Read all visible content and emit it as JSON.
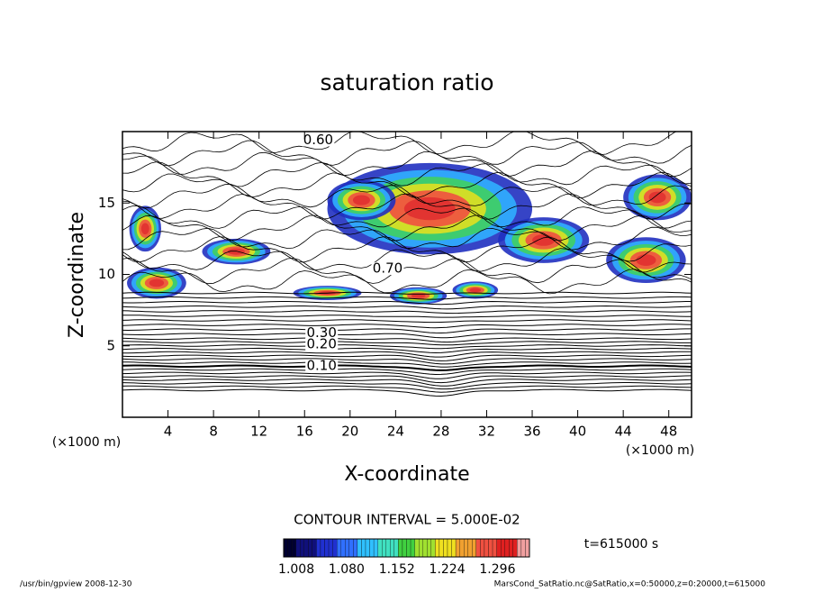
{
  "chart_data": {
    "type": "contour",
    "title": "saturation ratio",
    "x_label": "X-coordinate",
    "y_label": "Z-coordinate",
    "x_unit": "(×1000 m)",
    "y_unit": "(×1000 m)",
    "xlim": [
      0,
      50
    ],
    "ylim": [
      0,
      20
    ],
    "xticks": [
      4,
      8,
      12,
      16,
      20,
      24,
      28,
      32,
      36,
      40,
      44,
      48
    ],
    "yticks": [
      5,
      10,
      15
    ],
    "contour_labels": [
      "0.60",
      "0.70",
      "0.30",
      "0.20",
      "0.10"
    ],
    "contour_label_x": [
      17.2,
      23.3,
      17.5,
      17.5,
      17.5
    ],
    "contour_label_y": [
      19.4,
      10.4,
      5.9,
      5.1,
      3.6
    ],
    "contour_interval": "CONTOUR INTERVAL = 5.000E-02",
    "colorbar": {
      "lim": [
        0.995,
        1.347
      ],
      "ticks": [
        1.008,
        {
          "value": 1.08,
          "label": "1.080"
        },
        1.152,
        1.224,
        1.296
      ],
      "colors": [
        "#000030",
        "#10107a",
        "#2030d0",
        "#3070ff",
        "#30c0ff",
        "#40e0c0",
        "#40d040",
        "#a0e030",
        "#f0e020",
        "#f0a030",
        "#f05040",
        "#e02020",
        "#f0a0a0"
      ]
    },
    "time_label": "t=615000 s",
    "footer_left": "/usr/bin/gpview   2008-12-30",
    "footer_right": "MarsCond_SatRatio.nc@SatRatio,x=0:50000,z=0:20000,t=615000"
  }
}
